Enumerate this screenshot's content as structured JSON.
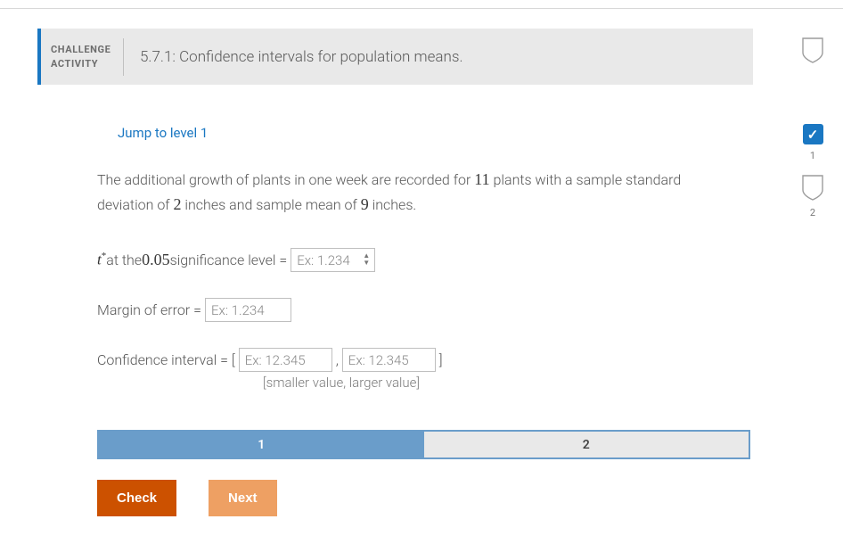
{
  "header": {
    "label": "CHALLENGE\nACTIVITY",
    "title": "5.7.1: Confidence intervals for population means."
  },
  "jump_link": "Jump to level 1",
  "problem": {
    "text_a": "The additional growth of plants in one week are recorded for ",
    "n": "11",
    "text_b": " plants with a sample standard deviation of ",
    "sd": "2",
    "text_c": " inches and sample mean of ",
    "mean": "9",
    "text_d": " inches."
  },
  "row_t": {
    "prefix_a": " at the ",
    "alpha": "0.05",
    "prefix_b": " significance level = ",
    "placeholder": "Ex: 1.234"
  },
  "row_margin": {
    "label": "Margin of error = ",
    "placeholder": "Ex: 1.234"
  },
  "row_ci": {
    "label": "Confidence interval = [ ",
    "sep": " , ",
    "end": " ]",
    "placeholder_a": "Ex: 12.345",
    "placeholder_b": "Ex: 12.345",
    "hint": "[smaller value, larger value]"
  },
  "levels": {
    "l1": "1",
    "l2": "2"
  },
  "buttons": {
    "check": "Check",
    "next": "Next"
  },
  "side": {
    "status1": "1",
    "status2": "2",
    "check": "✓"
  }
}
